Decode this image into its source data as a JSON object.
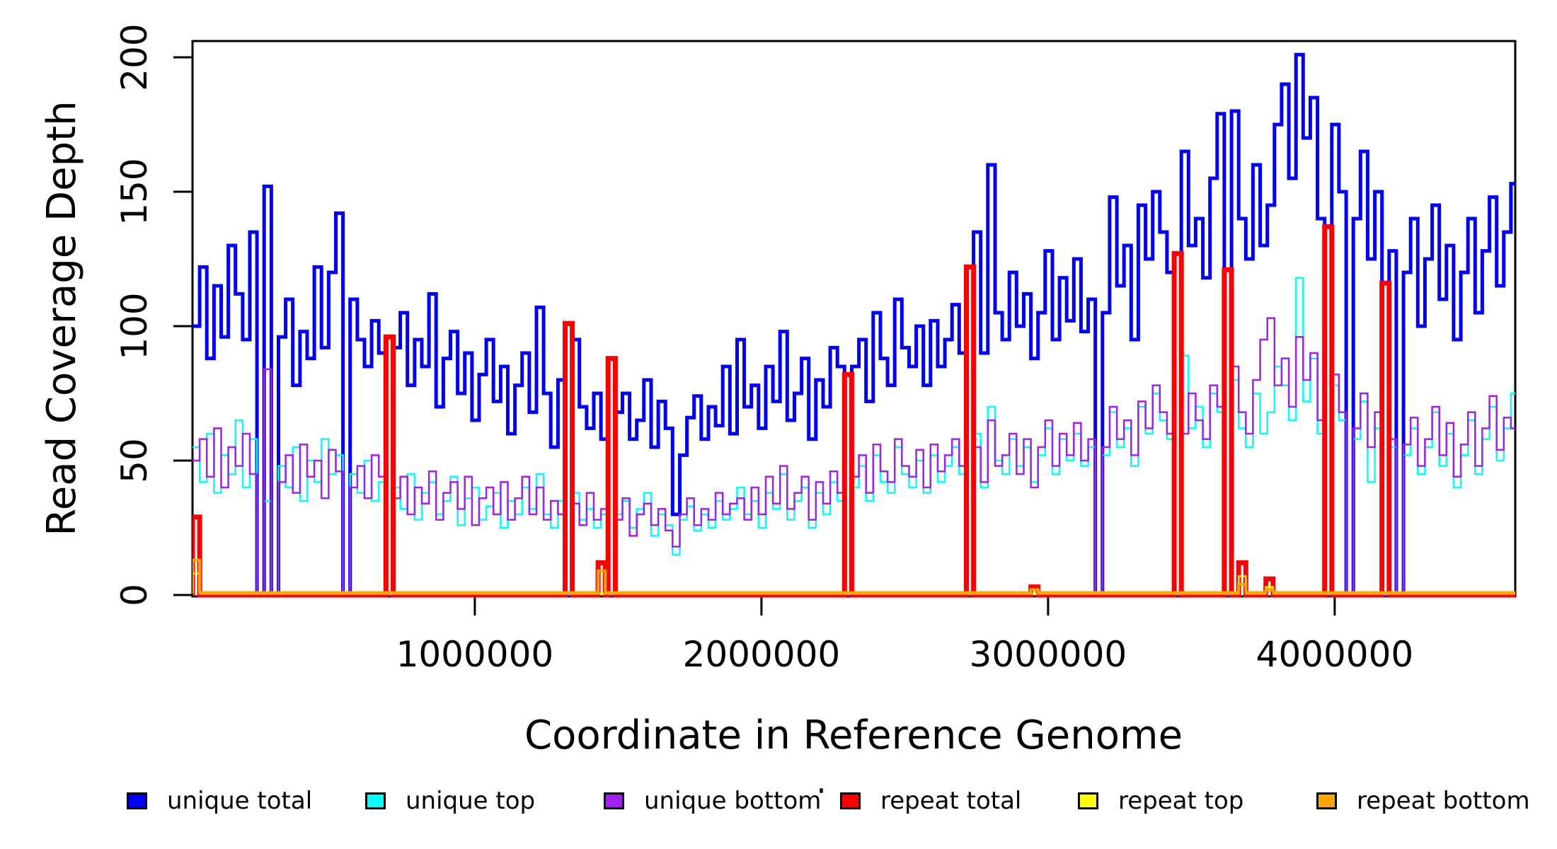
{
  "chart_data": {
    "type": "line",
    "subtype": "step",
    "title": "",
    "xlabel": "Coordinate in Reference Genome",
    "ylabel": "Read Coverage Depth",
    "xlim": [
      15000,
      4630000
    ],
    "ylim": [
      0,
      206
    ],
    "grid": false,
    "legend_position": "bottom",
    "x_ticks": [
      1000000,
      2000000,
      3000000,
      4000000
    ],
    "x_tick_labels": [
      "1000000",
      "2000000",
      "3000000",
      "4000000"
    ],
    "y_ticks": [
      0,
      50,
      100,
      150,
      200
    ],
    "y_tick_labels": [
      "0",
      "50",
      "100",
      "150",
      "200"
    ],
    "x_start": 15000,
    "x_step": 25000,
    "series": [
      {
        "name": "unique total",
        "color": "#0000ff",
        "width": 5,
        "values": [
          100,
          122,
          88,
          115,
          96,
          130,
          112,
          95,
          135,
          0,
          152,
          0,
          96,
          110,
          78,
          98,
          88,
          122,
          92,
          120,
          142,
          0,
          110,
          95,
          85,
          102,
          90,
          0,
          92,
          105,
          78,
          95,
          85,
          112,
          70,
          88,
          98,
          75,
          90,
          65,
          82,
          95,
          72,
          85,
          60,
          78,
          90,
          68,
          107,
          75,
          55,
          80,
          0,
          95,
          70,
          62,
          75,
          58,
          0,
          68,
          75,
          58,
          65,
          80,
          55,
          72,
          62,
          30,
          52,
          66,
          74,
          58,
          70,
          63,
          85,
          60,
          95,
          70,
          78,
          62,
          85,
          72,
          98,
          65,
          75,
          88,
          58,
          80,
          70,
          92,
          85,
          0,
          85,
          95,
          72,
          105,
          88,
          78,
          110,
          92,
          85,
          100,
          78,
          102,
          85,
          95,
          108,
          90,
          0,
          135,
          90,
          160,
          105,
          95,
          120,
          100,
          112,
          88,
          105,
          128,
          95,
          118,
          102,
          125,
          98,
          110,
          0,
          105,
          148,
          115,
          130,
          95,
          145,
          125,
          150,
          135,
          120,
          0,
          165,
          130,
          140,
          118,
          155,
          179,
          0,
          180,
          140,
          125,
          160,
          130,
          145,
          175,
          190,
          155,
          201,
          170,
          185,
          140,
          0,
          175,
          150,
          0,
          140,
          165,
          125,
          150,
          0,
          128,
          0,
          120,
          140,
          100,
          125,
          145,
          110,
          130,
          95,
          120,
          140,
          105,
          128,
          148,
          115,
          135,
          153
        ]
      },
      {
        "name": "unique top",
        "color": "#00ffff",
        "width": 2.5,
        "values": [
          55,
          42,
          60,
          38,
          52,
          45,
          65,
          40,
          58,
          0,
          35,
          0,
          48,
          40,
          55,
          35,
          50,
          42,
          58,
          45,
          52,
          0,
          45,
          38,
          50,
          35,
          42,
          0,
          40,
          32,
          45,
          28,
          38,
          42,
          30,
          35,
          44,
          26,
          36,
          40,
          28,
          33,
          38,
          25,
          35,
          30,
          40,
          32,
          45,
          30,
          25,
          35,
          0,
          38,
          28,
          32,
          25,
          30,
          0,
          30,
          35,
          25,
          32,
          38,
          22,
          30,
          26,
          15,
          28,
          33,
          24,
          30,
          25,
          35,
          28,
          32,
          40,
          30,
          35,
          25,
          38,
          32,
          45,
          28,
          35,
          40,
          25,
          38,
          30,
          42,
          35,
          0,
          40,
          48,
          35,
          52,
          42,
          38,
          55,
          45,
          40,
          50,
          38,
          52,
          42,
          48,
          55,
          45,
          0,
          60,
          40,
          70,
          50,
          45,
          58,
          48,
          55,
          42,
          52,
          62,
          45,
          58,
          50,
          60,
          48,
          55,
          0,
          52,
          68,
          55,
          62,
          48,
          70,
          60,
          75,
          65,
          58,
          0,
          89,
          62,
          70,
          55,
          75,
          68,
          0,
          80,
          62,
          55,
          75,
          60,
          68,
          85,
          78,
          65,
          118,
          72,
          88,
          60,
          0,
          78,
          65,
          0,
          58,
          72,
          42,
          62,
          0,
          55,
          0,
          52,
          62,
          45,
          55,
          68,
          48,
          60,
          40,
          52,
          65,
          45,
          58,
          70,
          50,
          62,
          75
        ]
      },
      {
        "name": "unique bottom",
        "color": "#a020f0",
        "width": 2.5,
        "values": [
          50,
          58,
          44,
          62,
          40,
          55,
          48,
          60,
          45,
          0,
          84,
          0,
          42,
          52,
          38,
          56,
          44,
          50,
          36,
          54,
          46,
          0,
          40,
          48,
          36,
          52,
          44,
          0,
          36,
          44,
          30,
          40,
          34,
          46,
          28,
          38,
          42,
          32,
          44,
          26,
          36,
          40,
          30,
          42,
          28,
          36,
          44,
          30,
          40,
          28,
          35,
          30,
          0,
          34,
          26,
          38,
          28,
          32,
          0,
          28,
          36,
          22,
          30,
          34,
          26,
          32,
          24,
          18,
          30,
          36,
          26,
          32,
          28,
          38,
          30,
          34,
          36,
          28,
          40,
          30,
          44,
          34,
          48,
          32,
          38,
          44,
          28,
          42,
          34,
          46,
          38,
          0,
          44,
          52,
          38,
          56,
          46,
          42,
          58,
          48,
          44,
          54,
          40,
          56,
          46,
          52,
          58,
          48,
          0,
          55,
          42,
          65,
          48,
          52,
          60,
          45,
          58,
          40,
          55,
          65,
          48,
          60,
          52,
          64,
          50,
          58,
          0,
          55,
          70,
          58,
          65,
          52,
          72,
          62,
          78,
          68,
          60,
          0,
          60,
          75,
          65,
          58,
          78,
          70,
          0,
          85,
          68,
          60,
          80,
          95,
          103,
          78,
          88,
          70,
          96,
          80,
          90,
          65,
          0,
          82,
          68,
          0,
          62,
          75,
          55,
          68,
          0,
          58,
          0,
          56,
          66,
          48,
          58,
          70,
          52,
          64,
          44,
          56,
          68,
          48,
          62,
          74,
          54,
          66,
          62
        ]
      },
      {
        "name": "repeat total",
        "color": "#ff0000",
        "width": 7,
        "baseline": 0,
        "spikes": [
          {
            "x": 15000,
            "v": 29
          },
          {
            "x": 690000,
            "v": 96
          },
          {
            "x": 1315000,
            "v": 101
          },
          {
            "x": 1430000,
            "v": 12
          },
          {
            "x": 1465000,
            "v": 88
          },
          {
            "x": 2290000,
            "v": 82
          },
          {
            "x": 2715000,
            "v": 122
          },
          {
            "x": 2940000,
            "v": 3
          },
          {
            "x": 3440000,
            "v": 127
          },
          {
            "x": 3615000,
            "v": 121
          },
          {
            "x": 3665000,
            "v": 12
          },
          {
            "x": 3760000,
            "v": 6
          },
          {
            "x": 3965000,
            "v": 137
          },
          {
            "x": 4165000,
            "v": 116
          }
        ]
      },
      {
        "name": "repeat top",
        "color": "#ffff00",
        "width": 2.5,
        "baseline": 0.5,
        "spikes": [
          {
            "x": 15000,
            "v": 8
          },
          {
            "x": 3665000,
            "v": 7
          },
          {
            "x": 3760000,
            "v": 3
          }
        ]
      },
      {
        "name": "repeat bottom",
        "color": "#ffa500",
        "width": 4,
        "baseline": 0.9,
        "spikes": [
          {
            "x": 15000,
            "v": 13
          },
          {
            "x": 1430000,
            "v": 9
          },
          {
            "x": 2940000,
            "v": 2
          },
          {
            "x": 3665000,
            "v": 4
          },
          {
            "x": 3760000,
            "v": 2
          }
        ]
      }
    ]
  }
}
